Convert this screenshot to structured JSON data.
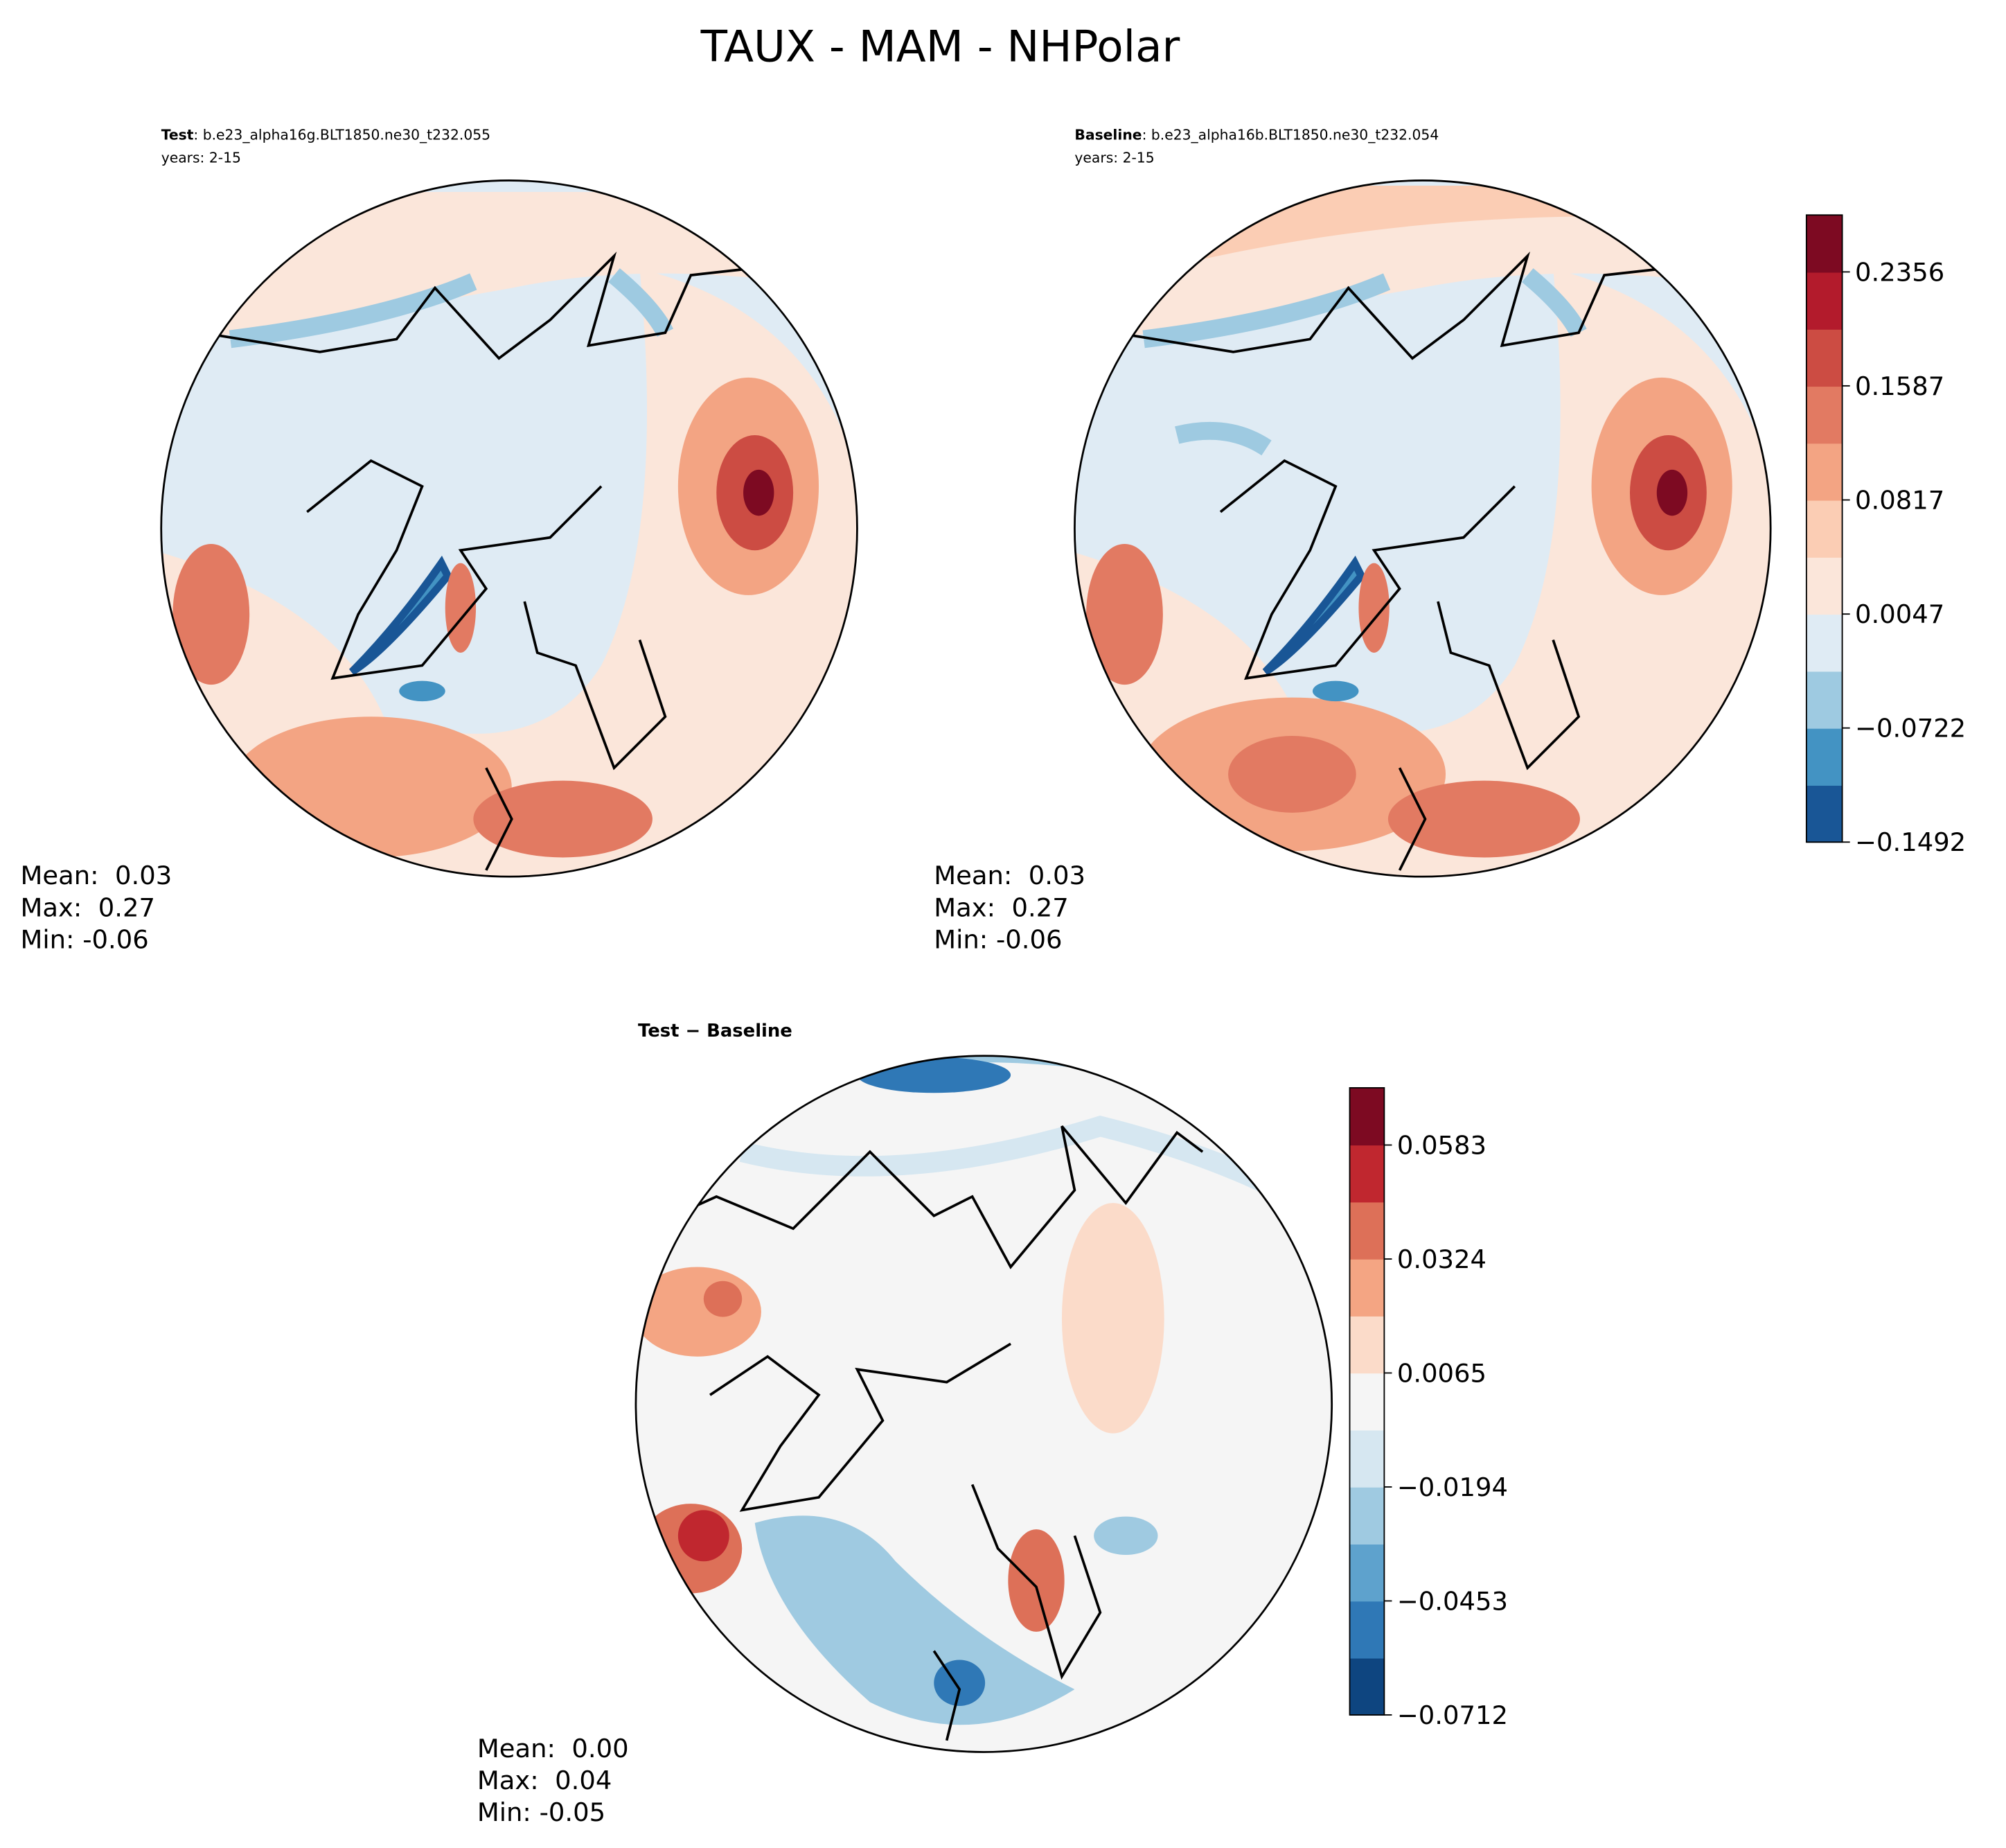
{
  "title": "TAUX - MAM - NHPolar",
  "panels": [
    {
      "label_bold": "Test",
      "label_rest": ": b.e23_alpha16g.BLT1850.ne30_t232.055",
      "years": "years: 2-15",
      "stats": [
        "Mean:  0.03",
        "Max:  0.27",
        "Min: -0.06"
      ]
    },
    {
      "label_bold": "Baseline",
      "label_rest": ": b.e23_alpha16b.BLT1850.ne30_t232.054",
      "years": "years: 2-15",
      "stats": [
        "Mean:  0.03",
        "Max:  0.27",
        "Min: -0.06"
      ]
    },
    {
      "label_bold": "Test − Baseline",
      "stats": [
        "Mean:  0.00",
        "Max:  0.04",
        "Min: -0.05"
      ]
    }
  ],
  "colorbars": [
    {
      "ylim": [
        -0.1492,
        0.274
      ],
      "yticks": [
        {
          "value": -0.1492,
          "label": "−0.1492"
        },
        {
          "value": -0.0722,
          "label": "−0.0722"
        },
        0.0047,
        0.0817,
        0.1587,
        0.2356
      ],
      "colors": [
        "#195696",
        "#4393c3",
        "#9ecae1",
        "#dfebf4",
        "#fbe6da",
        "#fbcdb4",
        "#f3a483",
        "#e27a62",
        "#cc4c43",
        "#b31b2c",
        "#7d0a22"
      ]
    },
    {
      "ylim": [
        -0.0712,
        0.0713
      ],
      "yticks": [
        {
          "value": -0.0712,
          "label": "−0.0712"
        },
        {
          "value": -0.0453,
          "label": "−0.0453"
        },
        {
          "value": -0.0194,
          "label": "−0.0194"
        },
        0.0065,
        0.0324,
        0.0583
      ],
      "colors": [
        "#0e4580",
        "#2f78b6",
        "#5ea2cd",
        "#9fcae1",
        "#d6e7f1",
        "#f5f5f5",
        "#fbdbc9",
        "#f4a583",
        "#dd7058",
        "#c0272f",
        "#7d0a22"
      ]
    }
  ]
}
